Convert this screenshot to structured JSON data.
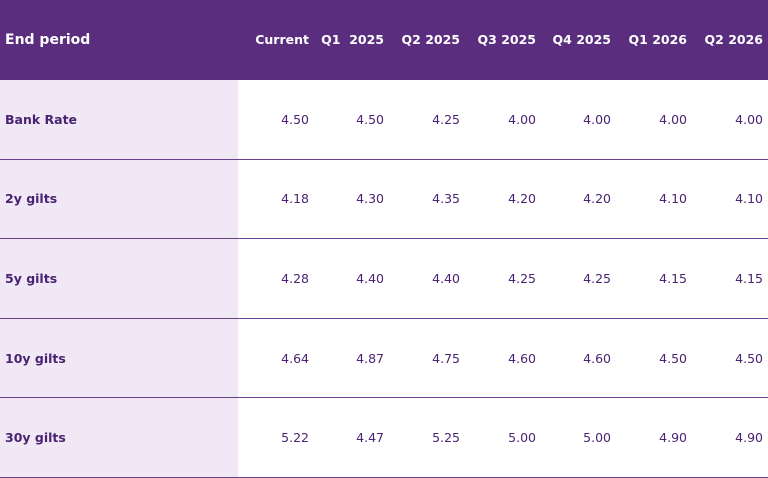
{
  "table": {
    "header": [
      "End period",
      "Current",
      "Q1  2025",
      "Q2 2025",
      "Q3 2025",
      "Q4 2025",
      "Q1 2026",
      "Q2 2026"
    ],
    "rows": [
      [
        "Bank Rate",
        "4.50",
        "4.50",
        "4.25",
        "4.00",
        "4.00",
        "4.00",
        "4.00"
      ],
      [
        "2y gilts",
        "4.18",
        "4.30",
        "4.35",
        "4.20",
        "4.20",
        "4.10",
        "4.10"
      ],
      [
        "5y gilts",
        "4.28",
        "4.40",
        "4.40",
        "4.25",
        "4.25",
        "4.15",
        "4.15"
      ],
      [
        "10y gilts",
        "4.64",
        "4.87",
        "4.75",
        "4.60",
        "4.60",
        "4.50",
        "4.50"
      ],
      [
        "30y gilts",
        "5.22",
        "4.47",
        "5.25",
        "5.00",
        "5.00",
        "4.90",
        "4.90"
      ]
    ]
  }
}
